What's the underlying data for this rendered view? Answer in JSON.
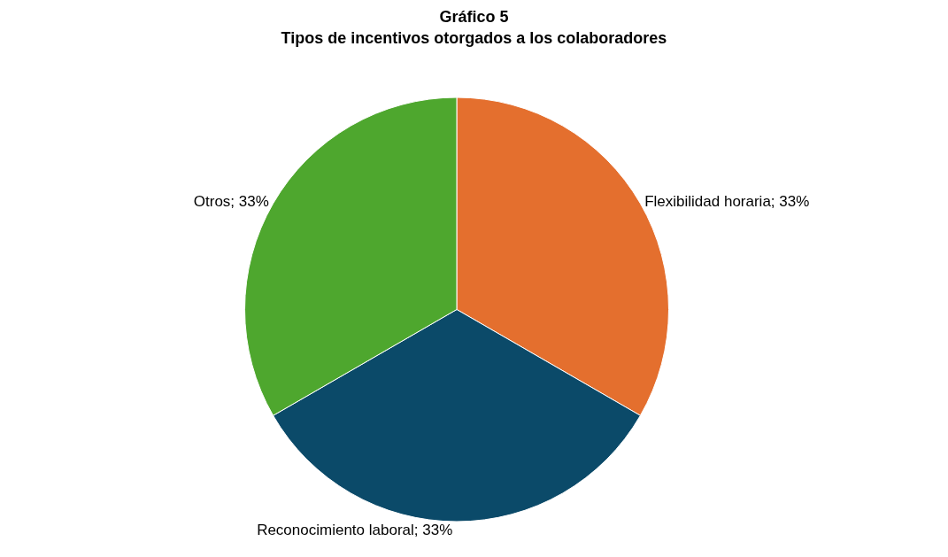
{
  "chart_data": {
    "type": "pie",
    "title": "Gráfico 5",
    "subtitle": "Tipos de incentivos otorgados a los colaboradores",
    "categories": [
      "Flexibilidad horaria",
      "Reconocimiento laboral",
      "Otros"
    ],
    "values": [
      33,
      33,
      33
    ],
    "value_labels": [
      "33%",
      "33%",
      "33%"
    ],
    "colors": [
      "#e46f2e",
      "#0b4a69",
      "#4ea72e"
    ],
    "legend": false
  }
}
